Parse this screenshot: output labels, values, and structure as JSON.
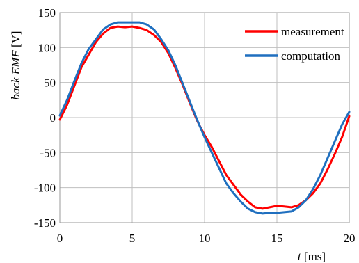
{
  "chart_data": {
    "type": "line",
    "title": "",
    "xlabel_symbol": "t",
    "xlabel_unit": " [ms]",
    "ylabel_name": "back EMF",
    "ylabel_unit": " [V]",
    "xlim": [
      0,
      20
    ],
    "ylim": [
      -150,
      150
    ],
    "xticks": [
      0,
      5,
      10,
      15,
      20
    ],
    "yticks": [
      -150,
      -100,
      -50,
      0,
      50,
      100,
      150
    ],
    "grid": true,
    "legend_position": "top-right",
    "series": [
      {
        "name": "measurement",
        "color": "#ff0000",
        "x": [
          0,
          0.5,
          1,
          1.5,
          2,
          2.5,
          3,
          3.5,
          4,
          4.5,
          5,
          5.5,
          6,
          6.5,
          7,
          7.5,
          8,
          8.5,
          9,
          9.5,
          10,
          10.5,
          11,
          11.5,
          12,
          12.5,
          13,
          13.5,
          14,
          14.5,
          15,
          15.5,
          16,
          16.5,
          17,
          17.5,
          18,
          18.5,
          19,
          19.5,
          20
        ],
        "y": [
          -3,
          18,
          45,
          72,
          90,
          108,
          120,
          128,
          130,
          129,
          130,
          128,
          125,
          118,
          108,
          92,
          70,
          46,
          20,
          -5,
          -25,
          -42,
          -62,
          -82,
          -96,
          -110,
          -120,
          -128,
          -130,
          -128,
          -126,
          -127,
          -128,
          -125,
          -118,
          -108,
          -94,
          -74,
          -52,
          -28,
          2
        ]
      },
      {
        "name": "computation",
        "color": "#1f6fbf",
        "x": [
          0,
          0.5,
          1,
          1.5,
          2,
          2.5,
          3,
          3.5,
          4,
          4.5,
          5,
          5.5,
          6,
          6.5,
          7,
          7.5,
          8,
          8.5,
          9,
          9.5,
          10,
          10.5,
          11,
          11.5,
          12,
          12.5,
          13,
          13.5,
          14,
          14.5,
          15,
          15.5,
          16,
          16.5,
          17,
          17.5,
          18,
          18.5,
          19,
          19.5,
          20
        ],
        "y": [
          3,
          25,
          52,
          78,
          98,
          112,
          126,
          133,
          136,
          136,
          136,
          136,
          133,
          126,
          112,
          96,
          74,
          48,
          22,
          -4,
          -28,
          -50,
          -72,
          -94,
          -108,
          -120,
          -130,
          -135,
          -137,
          -136,
          -136,
          -135,
          -134,
          -128,
          -118,
          -102,
          -82,
          -58,
          -34,
          -10,
          8
        ]
      }
    ]
  }
}
